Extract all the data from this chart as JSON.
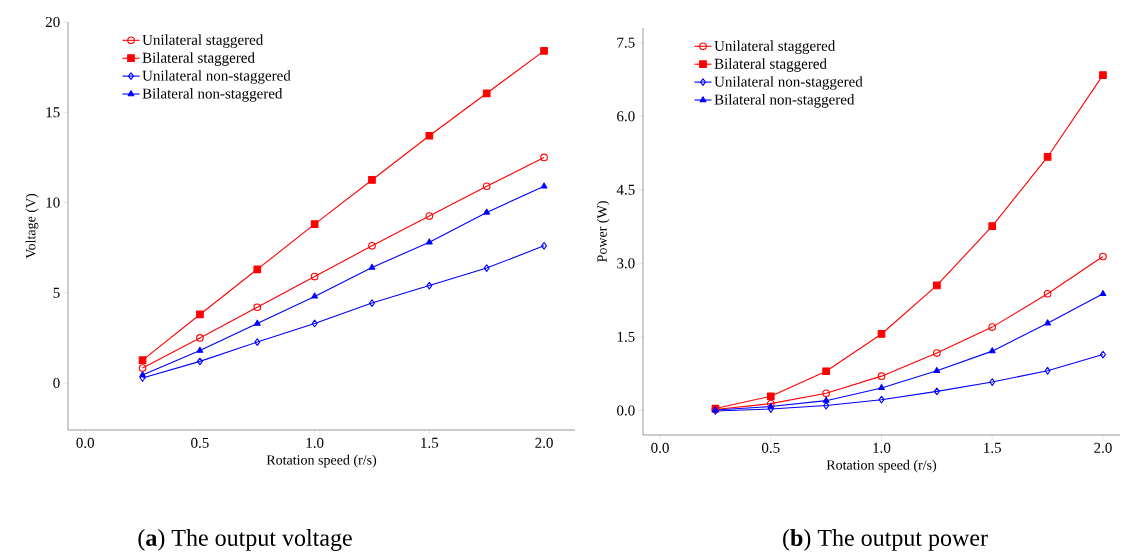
{
  "chart_data": [
    {
      "type": "line",
      "title": "(**a**) The output voltage",
      "xlabel": "Rotation speed (r/s)",
      "ylabel": "Voltage (V)",
      "x": [
        0.25,
        0.5,
        0.75,
        1.0,
        1.25,
        1.5,
        1.75,
        2.0
      ],
      "xlim": [
        -0.075,
        2.135
      ],
      "ylim": [
        -2.6,
        20
      ],
      "xticks": [
        {
          "value": 0,
          "label": "0.0"
        },
        {
          "value": 0.5,
          "label": "0.5"
        },
        {
          "value": 1,
          "label": "1.0"
        },
        {
          "value": 1.5,
          "label": "1.5"
        },
        {
          "value": 2,
          "label": "2.0"
        }
      ],
      "yticks": [
        0,
        5,
        10,
        15,
        20
      ],
      "legend": "top left",
      "line_style": "solid",
      "series": [
        {
          "name": "Unilateral staggered",
          "color": "#ff0000",
          "marker": "circle",
          "values": [
            0.83,
            2.5,
            4.2,
            5.9,
            7.6,
            9.25,
            10.9,
            12.5
          ]
        },
        {
          "name": "Bilateral staggered",
          "color": "#ff0000",
          "marker": "square",
          "values": [
            1.27,
            3.8,
            6.3,
            8.8,
            11.25,
            13.7,
            16.05,
            18.4
          ]
        },
        {
          "name": "Unilateral non-staggered",
          "color": "#0000ff",
          "marker": "diamond",
          "values": [
            0.28,
            1.2,
            2.27,
            3.3,
            4.43,
            5.4,
            6.37,
            7.6
          ]
        },
        {
          "name": "Bilateral non-staggered",
          "color": "#0000ff",
          "marker": "triangle",
          "values": [
            0.44,
            1.8,
            3.3,
            4.8,
            6.4,
            7.8,
            9.45,
            10.9
          ]
        }
      ]
    },
    {
      "type": "line",
      "title": "(**b**) The output power",
      "xlabel": "Rotation speed (r/s)",
      "ylabel": "Power (W)",
      "x": [
        0.25,
        0.5,
        0.75,
        1.0,
        1.25,
        1.5,
        1.75,
        2.0
      ],
      "xlim": [
        -0.077,
        2.077
      ],
      "ylim": [
        -0.5,
        7.8
      ],
      "xticks": [
        {
          "value": 0,
          "label": "0.0"
        },
        {
          "value": 0.5,
          "label": "0.5"
        },
        {
          "value": 1,
          "label": "1.0"
        },
        {
          "value": 1.5,
          "label": "1.5"
        },
        {
          "value": 2,
          "label": "2.0"
        }
      ],
      "yticks": [
        {
          "value": 0,
          "label": "0.0"
        },
        {
          "value": 1.5,
          "label": "1.5"
        },
        {
          "value": 3,
          "label": "3.0"
        },
        {
          "value": 4.5,
          "label": "4.5"
        },
        {
          "value": 6,
          "label": "6.0"
        },
        {
          "value": 7.5,
          "label": "7.5"
        }
      ],
      "legend": "top left",
      "line_style": "solid",
      "series": [
        {
          "name": "Unilateral staggered",
          "color": "#ff0000",
          "marker": "circle",
          "values": [
            0.02,
            0.14,
            0.35,
            0.7,
            1.17,
            1.7,
            2.38,
            3.14
          ]
        },
        {
          "name": "Bilateral staggered",
          "color": "#ff0000",
          "marker": "square",
          "values": [
            0.04,
            0.29,
            0.8,
            1.56,
            2.55,
            3.76,
            5.17,
            6.84
          ]
        },
        {
          "name": "Unilateral non-staggered",
          "color": "#0000ff",
          "marker": "diamond",
          "values": [
            -0.01,
            0.03,
            0.1,
            0.22,
            0.39,
            0.58,
            0.81,
            1.14
          ]
        },
        {
          "name": "Bilateral non-staggered",
          "color": "#0000ff",
          "marker": "triangle",
          "values": [
            0.01,
            0.08,
            0.2,
            0.46,
            0.81,
            1.21,
            1.78,
            2.38
          ]
        }
      ]
    }
  ]
}
